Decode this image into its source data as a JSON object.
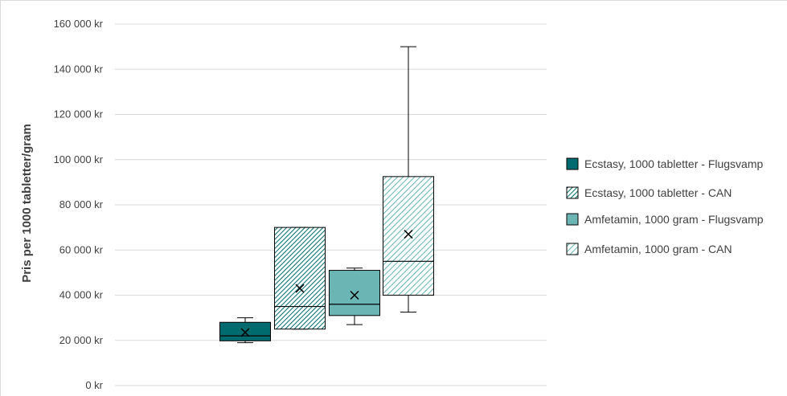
{
  "chart_data": {
    "type": "boxplot",
    "title": "",
    "ylabel": "Pris per 1000 tabletter/gram",
    "xlabel": "",
    "ylim": [
      0,
      160000
    ],
    "y_ticks": [
      "0 kr",
      "20 000 kr",
      "40 000 kr",
      "60 000 kr",
      "80 000 kr",
      "100 000 kr",
      "120 000 kr",
      "140 000 kr",
      "160 000 kr"
    ],
    "grid": true,
    "legend_position": "right",
    "series": [
      {
        "name": "Ecstasy, 1000 tabletter - Flugsvamp",
        "color": "#006b6e",
        "pattern": "solid",
        "min": 19000,
        "q1": 19800,
        "median": 22000,
        "q3": 28000,
        "max": 30000,
        "mean": 23500
      },
      {
        "name": "Ecstasy, 1000 tabletter - CAN",
        "color": "#006b6e",
        "pattern": "dense-hatch",
        "min": 25000,
        "q1": 25000,
        "median": 35000,
        "q3": 70000,
        "max": 70000,
        "mean": 43000
      },
      {
        "name": "Amfetamin, 1000 gram - Flugsvamp",
        "color": "#6bb5b5",
        "pattern": "solid",
        "min": 27000,
        "q1": 31000,
        "median": 36000,
        "q3": 51000,
        "max": 52000,
        "mean": 40000
      },
      {
        "name": "Amfetamin, 1000 gram - CAN",
        "color": "#3aa0a0",
        "pattern": "light-hatch",
        "min": 32500,
        "q1": 40000,
        "median": 55000,
        "q3": 92500,
        "max": 150000,
        "mean": 67000
      }
    ]
  }
}
